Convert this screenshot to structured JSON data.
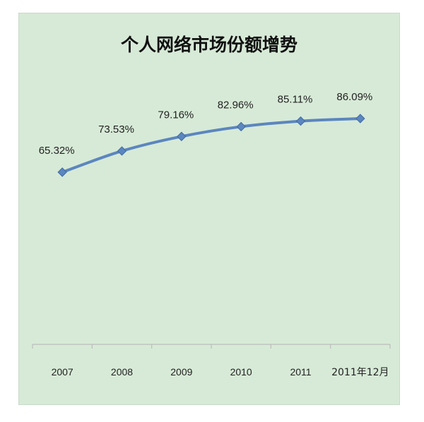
{
  "chart_data": {
    "type": "line",
    "title": "个人网络市场份额增势",
    "categories": [
      "2007",
      "2008",
      "2009",
      "2010",
      "2011",
      "2011年12月"
    ],
    "series": [
      {
        "values": [
          65.32,
          73.53,
          79.16,
          82.96,
          85.11,
          86.09
        ],
        "labels": [
          "65.32%",
          "73.53%",
          "79.16%",
          "82.96%",
          "85.11%",
          "86.09%"
        ]
      }
    ],
    "ylim": [
      0,
      100
    ],
    "grid": false,
    "legend": "none",
    "line_color": "#5b86bf",
    "background_color": "#d7ead7"
  }
}
